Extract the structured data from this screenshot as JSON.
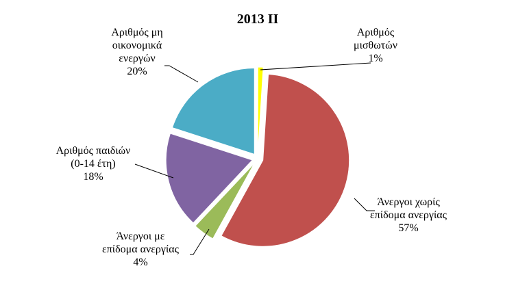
{
  "chart_data": {
    "type": "pie",
    "title": "2013 II",
    "slices": [
      {
        "label_lines": [
          "Αριθμός",
          "μισθωτών"
        ],
        "value": 1,
        "pct_label": "1%",
        "color": "#ffff00",
        "exploded": true
      },
      {
        "label_lines": [
          "Άνεργοι χωρίς",
          "επίδομα ανεργίας"
        ],
        "value": 57,
        "pct_label": "57%",
        "color": "#c0504d",
        "exploded": true
      },
      {
        "label_lines": [
          "Άνεργοι με",
          "επίδομα ανεργίας"
        ],
        "value": 4,
        "pct_label": "4%",
        "color": "#9bbb59",
        "exploded": true
      },
      {
        "label_lines": [
          "Αριθμός παιδιών",
          "(0-14 έτη)"
        ],
        "value": 18,
        "pct_label": "18%",
        "color": "#8064a2",
        "exploded": true
      },
      {
        "label_lines": [
          "Αριθμός μη",
          "οικονομικά",
          "ενεργών"
        ],
        "value": 20,
        "pct_label": "20%",
        "color": "#4bacc6",
        "exploded": true
      }
    ],
    "start_angle_deg": 0,
    "direction": "clockwise",
    "legend": "none",
    "data_labels": "category-and-percent-outside-with-leader-lines"
  }
}
